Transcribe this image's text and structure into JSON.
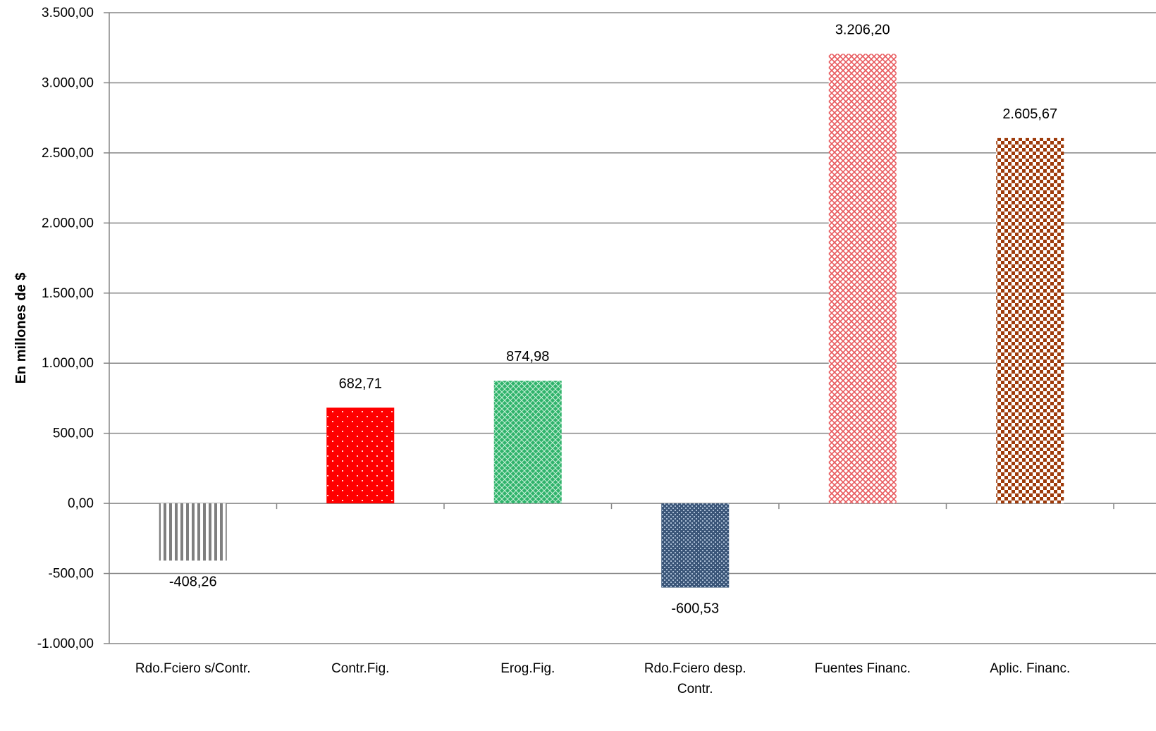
{
  "chart_data": {
    "type": "bar",
    "title": "",
    "xlabel": "",
    "ylabel": "En millones de $",
    "categories": [
      "Rdo.Fciero s/Contr.",
      "Contr.Fig.",
      "Erog.Fig.",
      "Rdo.Fciero desp. Contr.",
      "Fuentes Financ.",
      "Aplic. Financ."
    ],
    "category_lines": [
      [
        "Rdo.Fciero s/Contr."
      ],
      [
        "Contr.Fig."
      ],
      [
        "Erog.Fig."
      ],
      [
        "Rdo.Fciero desp.",
        "Contr."
      ],
      [
        "Fuentes Financ."
      ],
      [
        "Aplic. Financ."
      ]
    ],
    "values": [
      -408.26,
      682.71,
      874.98,
      -600.53,
      3206.2,
      2605.67
    ],
    "value_labels": [
      "-408,26",
      "682,71",
      "874,98",
      "-600,53",
      "3.206,20",
      "2.605,67"
    ],
    "ylim": [
      -1000,
      3500
    ],
    "yticks": [
      -1000,
      -500,
      0,
      500,
      1000,
      1500,
      2000,
      2500,
      3000,
      3500
    ],
    "ytick_labels": [
      "-1.000,00",
      "-500,00",
      "0,00",
      "500,00",
      "1.000,00",
      "1.500,00",
      "2.000,00",
      "2.500,00",
      "3.000,00",
      "3.500,00"
    ],
    "grid": true,
    "legend": "none",
    "bar_colors": [
      "#7f7f7f",
      "#ff0000",
      "#2fb36b",
      "#3a5578",
      "#e8585c",
      "#9e3b0b"
    ],
    "bar_patterns": [
      "vertical-stripes",
      "dots",
      "diamond-grid",
      "fine-checker",
      "weave",
      "checker"
    ]
  }
}
